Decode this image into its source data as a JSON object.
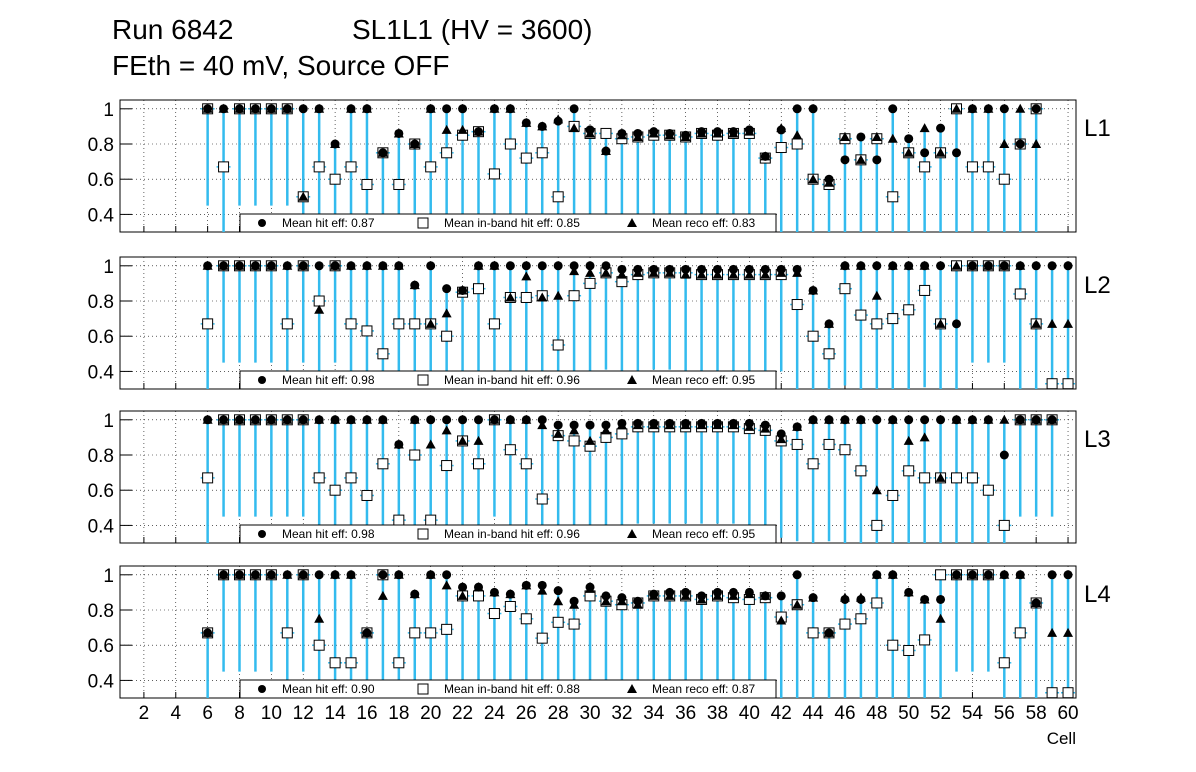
{
  "title": {
    "run": "Run 6842",
    "chamber": "SL1L1 (HV = 3600)",
    "conditions": "FEth = 40 mV, Source OFF"
  },
  "colors": {
    "hit": "#000000",
    "band_marker_fill": "#ffffff",
    "error_bar": "#33bbee",
    "band_edge_red": "#dd0000",
    "band_edge_purple": "#660099",
    "grid": "#000000"
  },
  "chart_data": {
    "type": "scatter",
    "x_axis": {
      "label": "Cell",
      "range": [
        0.5,
        60.5
      ],
      "tick_labels": [
        "2",
        "4",
        "6",
        "8",
        "10",
        "12",
        "14",
        "16",
        "18",
        "20",
        "22",
        "24",
        "26",
        "28",
        "30",
        "32",
        "34",
        "36",
        "38",
        "40",
        "42",
        "44",
        "46",
        "48",
        "50",
        "52",
        "54",
        "56",
        "58",
        "60"
      ],
      "tick_values": [
        2,
        4,
        6,
        8,
        10,
        12,
        14,
        16,
        18,
        20,
        22,
        24,
        26,
        28,
        30,
        32,
        34,
        36,
        38,
        40,
        42,
        44,
        46,
        48,
        50,
        52,
        54,
        56,
        58,
        60
      ]
    },
    "y_axis": {
      "range": [
        0.3,
        1.05
      ],
      "tick_labels": [
        "0.4",
        "0.6",
        "0.8",
        "1"
      ],
      "tick_values": [
        0.4,
        0.6,
        0.8,
        1.0
      ]
    },
    "grid": true,
    "legend_labels": {
      "hit": "Mean hit  eff:",
      "inband": "Mean in-band hit eff:",
      "reco": "Mean reco eff:"
    },
    "panels": [
      {
        "name": "L1",
        "legend": {
          "hit": "0.87",
          "inband": "0.85",
          "reco": "0.83"
        },
        "cells": [
          6,
          7,
          8,
          9,
          10,
          11,
          12,
          13,
          14,
          15,
          16,
          17,
          18,
          19,
          20,
          21,
          22,
          23,
          24,
          25,
          26,
          27,
          28,
          29,
          30,
          31,
          32,
          33,
          34,
          35,
          36,
          37,
          38,
          39,
          40,
          41,
          42,
          43,
          44,
          45,
          46,
          47,
          48,
          49,
          50,
          51,
          52,
          53,
          54,
          55,
          56,
          57,
          58
        ],
        "hit": [
          1.0,
          1.0,
          1.0,
          1.0,
          1.0,
          1.0,
          1.0,
          1.0,
          0.8,
          1.0,
          1.0,
          0.75,
          0.86,
          0.8,
          1.0,
          1.0,
          1.0,
          0.87,
          1.0,
          1.0,
          0.92,
          0.9,
          0.93,
          1.0,
          0.88,
          0.76,
          0.86,
          0.86,
          0.87,
          0.86,
          0.85,
          0.87,
          0.87,
          0.87,
          0.88,
          0.73,
          0.88,
          1.0,
          1.0,
          0.6,
          0.71,
          0.84,
          0.71,
          1.0,
          0.83,
          0.75,
          0.89,
          0.75,
          1.0,
          1.0,
          1.0,
          0.8,
          1.0
        ],
        "inband": [
          1.0,
          0.67,
          1.0,
          1.0,
          1.0,
          1.0,
          0.5,
          0.67,
          0.6,
          0.67,
          0.57,
          0.75,
          0.57,
          0.8,
          0.67,
          0.75,
          0.85,
          0.87,
          0.63,
          0.8,
          0.72,
          0.75,
          0.5,
          0.9,
          0.86,
          0.86,
          0.83,
          0.84,
          0.85,
          0.85,
          0.84,
          0.86,
          0.85,
          0.86,
          0.86,
          0.72,
          0.78,
          0.8,
          0.6,
          0.57,
          0.83,
          0.71,
          0.83,
          0.5,
          0.75,
          0.67,
          0.75,
          1.0,
          0.67,
          0.67,
          0.6,
          0.8,
          1.0
        ],
        "reco": [
          1.0,
          1.0,
          1.0,
          1.0,
          1.0,
          1.0,
          0.5,
          1.0,
          0.8,
          1.0,
          1.0,
          0.75,
          0.86,
          0.8,
          1.0,
          0.88,
          0.88,
          0.87,
          1.0,
          1.0,
          0.92,
          0.9,
          0.94,
          0.89,
          0.86,
          0.76,
          0.85,
          0.84,
          0.86,
          0.85,
          0.84,
          0.86,
          0.86,
          0.86,
          0.87,
          0.73,
          0.89,
          0.85,
          0.6,
          0.58,
          0.84,
          0.71,
          0.84,
          0.83,
          0.75,
          0.89,
          0.75,
          1.0,
          1.0,
          1.0,
          0.8,
          1.0,
          0.8
        ]
      },
      {
        "name": "L2",
        "legend": {
          "hit": "0.98",
          "inband": "0.96",
          "reco": "0.95"
        },
        "cells": [
          6,
          7,
          8,
          9,
          10,
          11,
          12,
          13,
          14,
          15,
          16,
          17,
          18,
          19,
          20,
          21,
          22,
          23,
          24,
          25,
          26,
          27,
          28,
          29,
          30,
          31,
          32,
          33,
          34,
          35,
          36,
          37,
          38,
          39,
          40,
          41,
          42,
          43,
          44,
          45,
          46,
          47,
          48,
          49,
          50,
          51,
          52,
          53,
          54,
          55,
          56,
          57,
          58,
          59,
          60
        ],
        "hit": [
          1.0,
          1.0,
          1.0,
          1.0,
          1.0,
          1.0,
          1.0,
          1.0,
          1.0,
          1.0,
          1.0,
          1.0,
          1.0,
          0.89,
          1.0,
          0.87,
          0.86,
          1.0,
          1.0,
          1.0,
          1.0,
          1.0,
          1.0,
          1.0,
          1.0,
          1.0,
          0.98,
          0.98,
          0.98,
          0.98,
          0.98,
          0.98,
          0.98,
          0.98,
          0.98,
          0.98,
          0.98,
          0.98,
          0.86,
          0.67,
          1.0,
          1.0,
          1.0,
          1.0,
          1.0,
          1.0,
          1.0,
          0.67,
          1.0,
          1.0,
          1.0,
          1.0,
          1.0,
          1.0,
          1.0
        ],
        "inband": [
          0.67,
          1.0,
          1.0,
          1.0,
          1.0,
          0.67,
          1.0,
          0.8,
          1.0,
          0.67,
          0.63,
          0.5,
          0.67,
          0.67,
          0.67,
          0.6,
          0.85,
          0.87,
          0.67,
          0.82,
          0.82,
          0.83,
          0.55,
          0.83,
          0.9,
          0.96,
          0.91,
          0.95,
          0.96,
          0.96,
          0.96,
          0.95,
          0.95,
          0.95,
          0.95,
          0.95,
          0.95,
          0.78,
          0.6,
          0.5,
          0.87,
          0.72,
          0.67,
          0.7,
          0.75,
          0.86,
          0.67,
          1.0,
          1.0,
          1.0,
          1.0,
          0.84,
          0.67,
          0.33,
          0.33
        ],
        "reco": [
          1.0,
          1.0,
          1.0,
          1.0,
          1.0,
          1.0,
          1.0,
          0.75,
          1.0,
          1.0,
          1.0,
          1.0,
          1.0,
          0.89,
          0.67,
          0.73,
          0.86,
          1.0,
          1.0,
          0.82,
          0.94,
          0.82,
          0.83,
          0.97,
          0.96,
          0.96,
          0.95,
          0.96,
          0.96,
          0.96,
          0.95,
          0.95,
          0.95,
          0.95,
          0.95,
          0.95,
          0.96,
          0.96,
          0.86,
          0.67,
          1.0,
          1.0,
          0.83,
          1.0,
          1.0,
          1.0,
          0.67,
          1.0,
          1.0,
          1.0,
          1.0,
          1.0,
          0.67,
          0.67,
          0.67
        ]
      },
      {
        "name": "L3",
        "legend": {
          "hit": "0.98",
          "inband": "0.96",
          "reco": "0.95"
        },
        "cells": [
          6,
          7,
          8,
          9,
          10,
          11,
          12,
          13,
          14,
          15,
          16,
          17,
          18,
          19,
          20,
          21,
          22,
          23,
          24,
          25,
          26,
          27,
          28,
          29,
          30,
          31,
          32,
          33,
          34,
          35,
          36,
          37,
          38,
          39,
          40,
          41,
          42,
          43,
          44,
          45,
          46,
          47,
          48,
          49,
          50,
          51,
          52,
          53,
          54,
          55,
          56,
          57,
          58,
          59
        ],
        "hit": [
          1.0,
          1.0,
          1.0,
          1.0,
          1.0,
          1.0,
          1.0,
          1.0,
          1.0,
          1.0,
          1.0,
          1.0,
          0.86,
          1.0,
          1.0,
          1.0,
          1.0,
          1.0,
          1.0,
          1.0,
          1.0,
          1.0,
          0.97,
          0.97,
          0.97,
          0.97,
          0.98,
          0.98,
          0.98,
          0.98,
          0.98,
          0.98,
          0.98,
          0.98,
          0.98,
          0.97,
          0.92,
          0.96,
          1.0,
          1.0,
          1.0,
          1.0,
          1.0,
          1.0,
          1.0,
          1.0,
          1.0,
          1.0,
          1.0,
          1.0,
          0.8,
          1.0,
          1.0,
          1.0
        ],
        "inband": [
          0.67,
          1.0,
          1.0,
          1.0,
          1.0,
          1.0,
          1.0,
          0.67,
          0.6,
          0.67,
          0.57,
          0.75,
          0.43,
          0.8,
          0.43,
          0.74,
          0.88,
          0.75,
          1.0,
          0.83,
          0.75,
          0.55,
          0.91,
          0.88,
          0.85,
          0.9,
          0.92,
          0.96,
          0.96,
          0.96,
          0.96,
          0.96,
          0.96,
          0.96,
          0.95,
          0.94,
          0.88,
          0.86,
          0.75,
          0.86,
          0.83,
          0.71,
          0.4,
          0.57,
          0.71,
          0.67,
          0.67,
          0.67,
          0.67,
          0.6,
          0.4,
          1.0,
          1.0,
          1.0
        ],
        "reco": [
          1.0,
          1.0,
          1.0,
          1.0,
          1.0,
          1.0,
          1.0,
          1.0,
          1.0,
          1.0,
          1.0,
          1.0,
          0.86,
          1.0,
          0.86,
          0.94,
          0.88,
          0.88,
          1.0,
          1.0,
          1.0,
          0.97,
          0.92,
          0.94,
          0.88,
          0.94,
          0.97,
          0.97,
          0.97,
          0.97,
          0.97,
          0.97,
          0.97,
          0.97,
          0.96,
          0.95,
          0.89,
          0.96,
          1.0,
          1.0,
          1.0,
          1.0,
          0.6,
          1.0,
          0.88,
          0.9,
          0.67,
          1.0,
          1.0,
          1.0,
          1.0,
          1.0,
          1.0,
          1.0
        ]
      },
      {
        "name": "L4",
        "legend": {
          "hit": "0.90",
          "inband": "0.88",
          "reco": "0.87"
        },
        "cells": [
          6,
          7,
          8,
          9,
          10,
          11,
          12,
          13,
          14,
          15,
          16,
          17,
          18,
          19,
          20,
          21,
          22,
          23,
          24,
          25,
          26,
          27,
          28,
          29,
          30,
          31,
          32,
          33,
          34,
          35,
          36,
          37,
          38,
          39,
          40,
          41,
          42,
          43,
          44,
          45,
          46,
          47,
          48,
          49,
          50,
          51,
          52,
          53,
          54,
          55,
          56,
          57,
          58,
          59,
          60
        ],
        "hit": [
          0.67,
          1.0,
          1.0,
          1.0,
          1.0,
          1.0,
          1.0,
          1.0,
          1.0,
          1.0,
          0.67,
          1.0,
          1.0,
          0.89,
          1.0,
          1.0,
          0.93,
          0.93,
          0.9,
          0.89,
          0.94,
          0.94,
          0.91,
          0.85,
          0.93,
          0.88,
          0.87,
          0.85,
          0.89,
          0.9,
          0.9,
          0.88,
          0.9,
          0.9,
          0.9,
          0.88,
          0.88,
          1.0,
          0.87,
          0.67,
          0.86,
          0.86,
          1.0,
          1.0,
          0.9,
          0.86,
          0.86,
          1.0,
          1.0,
          1.0,
          1.0,
          1.0,
          0.84,
          1.0,
          1.0
        ],
        "inband": [
          0.67,
          1.0,
          1.0,
          1.0,
          1.0,
          0.67,
          1.0,
          0.6,
          0.5,
          0.5,
          0.67,
          1.0,
          0.5,
          0.67,
          0.67,
          0.69,
          0.88,
          0.88,
          0.78,
          0.82,
          0.75,
          0.64,
          0.73,
          0.72,
          0.88,
          0.85,
          0.83,
          0.84,
          0.88,
          0.88,
          0.88,
          0.86,
          0.88,
          0.87,
          0.86,
          0.87,
          0.76,
          0.83,
          0.67,
          0.67,
          0.72,
          0.75,
          0.84,
          0.6,
          0.57,
          0.63,
          1.0,
          1.0,
          1.0,
          1.0,
          0.5,
          0.67,
          0.84,
          0.33,
          0.33
        ],
        "reco": [
          0.67,
          1.0,
          1.0,
          1.0,
          1.0,
          1.0,
          1.0,
          0.75,
          1.0,
          1.0,
          0.67,
          0.88,
          1.0,
          0.89,
          1.0,
          0.94,
          0.88,
          0.93,
          0.9,
          0.89,
          0.94,
          0.91,
          0.85,
          0.83,
          0.92,
          0.85,
          0.85,
          0.83,
          0.88,
          0.88,
          0.88,
          0.86,
          0.88,
          0.88,
          0.89,
          0.88,
          0.74,
          0.83,
          0.87,
          0.67,
          0.87,
          0.87,
          1.0,
          1.0,
          0.9,
          0.86,
          0.75,
          1.0,
          1.0,
          1.0,
          1.0,
          1.0,
          0.84,
          0.67,
          0.67
        ]
      }
    ]
  }
}
